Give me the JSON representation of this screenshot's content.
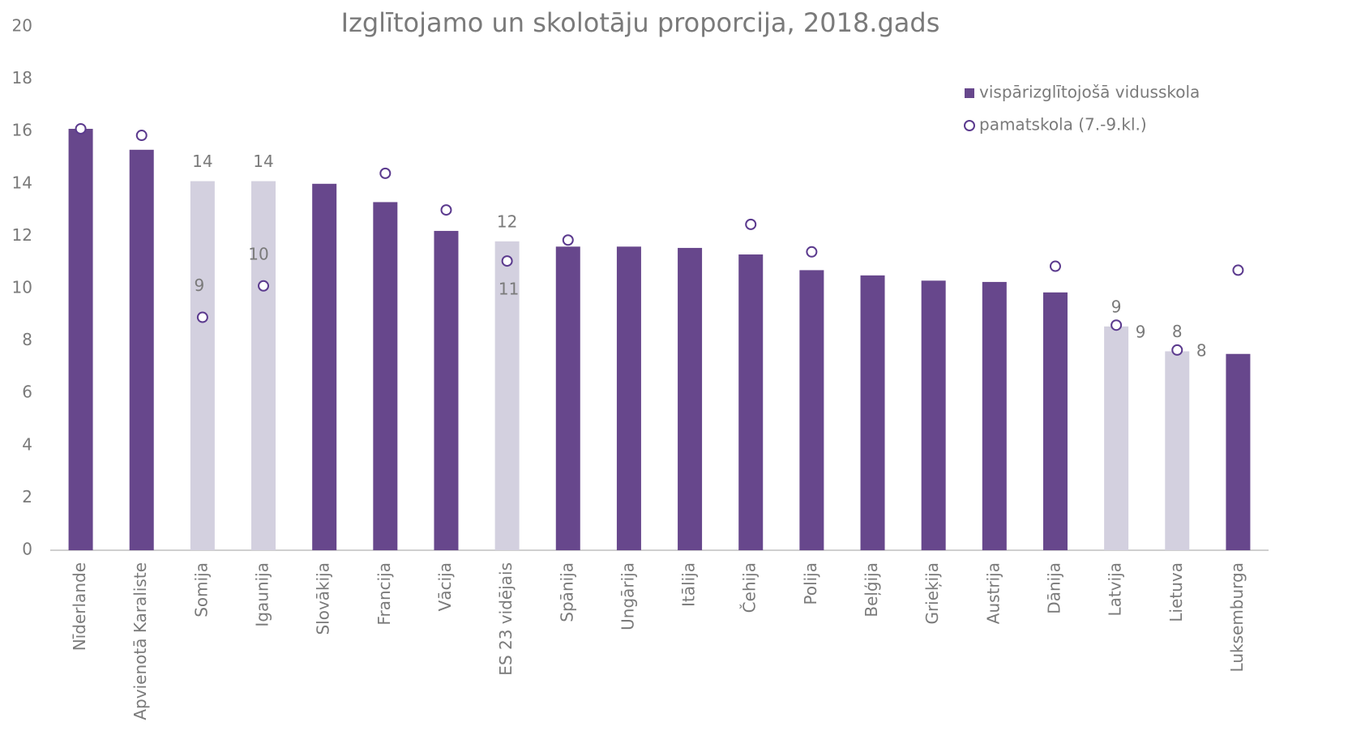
{
  "chart_data": {
    "type": "bar",
    "title": "Izglītojamo un skolotāju proporcija, 2018.gads",
    "categories": [
      "Nīderlande",
      "Apvienotā Karaliste",
      "Somija",
      "Igaunija",
      "Slovākija",
      "Francija",
      "Vācija",
      "ES 23 vidējais",
      "Spānija",
      "Ungārija",
      "Itālija",
      "Čehija",
      "Polija",
      "Beļģija",
      "Grieķija",
      "Austrija",
      "Dānija",
      "Latvija",
      "Lietuva",
      "Luksemburga"
    ],
    "series": [
      {
        "name": "vispārizglītojošā vidusskola",
        "type": "bar",
        "color": "#67478c",
        "colors": [
          "#67478c",
          "#67478c",
          "#d3d0df",
          "#d3d0df",
          "#67478c",
          "#67478c",
          "#67478c",
          "#d3d0df",
          "#67478c",
          "#67478c",
          "#67478c",
          "#67478c",
          "#67478c",
          "#67478c",
          "#67478c",
          "#67478c",
          "#67478c",
          "#d3d0df",
          "#d3d0df",
          "#67478c"
        ],
        "values": [
          16.1,
          15.3,
          14.1,
          14.1,
          14.0,
          13.3,
          12.2,
          11.8,
          11.6,
          11.6,
          11.55,
          11.3,
          10.7,
          10.5,
          10.3,
          10.25,
          9.85,
          8.55,
          7.6,
          7.5
        ],
        "value_labels": [
          null,
          null,
          "14",
          "14",
          null,
          null,
          null,
          "12",
          null,
          null,
          null,
          null,
          null,
          null,
          null,
          null,
          null,
          "9",
          "8",
          null
        ]
      },
      {
        "name": "pamatskola (7.-9.kl.)",
        "type": "marker",
        "color": "#5b3a8e",
        "values": [
          16.1,
          15.85,
          8.9,
          10.1,
          null,
          14.4,
          13.0,
          11.05,
          11.85,
          null,
          null,
          12.45,
          11.4,
          null,
          null,
          null,
          10.85,
          8.6,
          7.65,
          10.7
        ],
        "value_labels": [
          null,
          null,
          "9",
          "10",
          null,
          null,
          null,
          "11",
          null,
          null,
          null,
          null,
          null,
          null,
          null,
          null,
          null,
          "9",
          "8",
          null
        ]
      }
    ],
    "ylim": [
      0,
      20
    ],
    "yticks": [
      0,
      2,
      4,
      6,
      8,
      10,
      12,
      14,
      16,
      18,
      20
    ],
    "grid": false,
    "legend": "top-right"
  }
}
